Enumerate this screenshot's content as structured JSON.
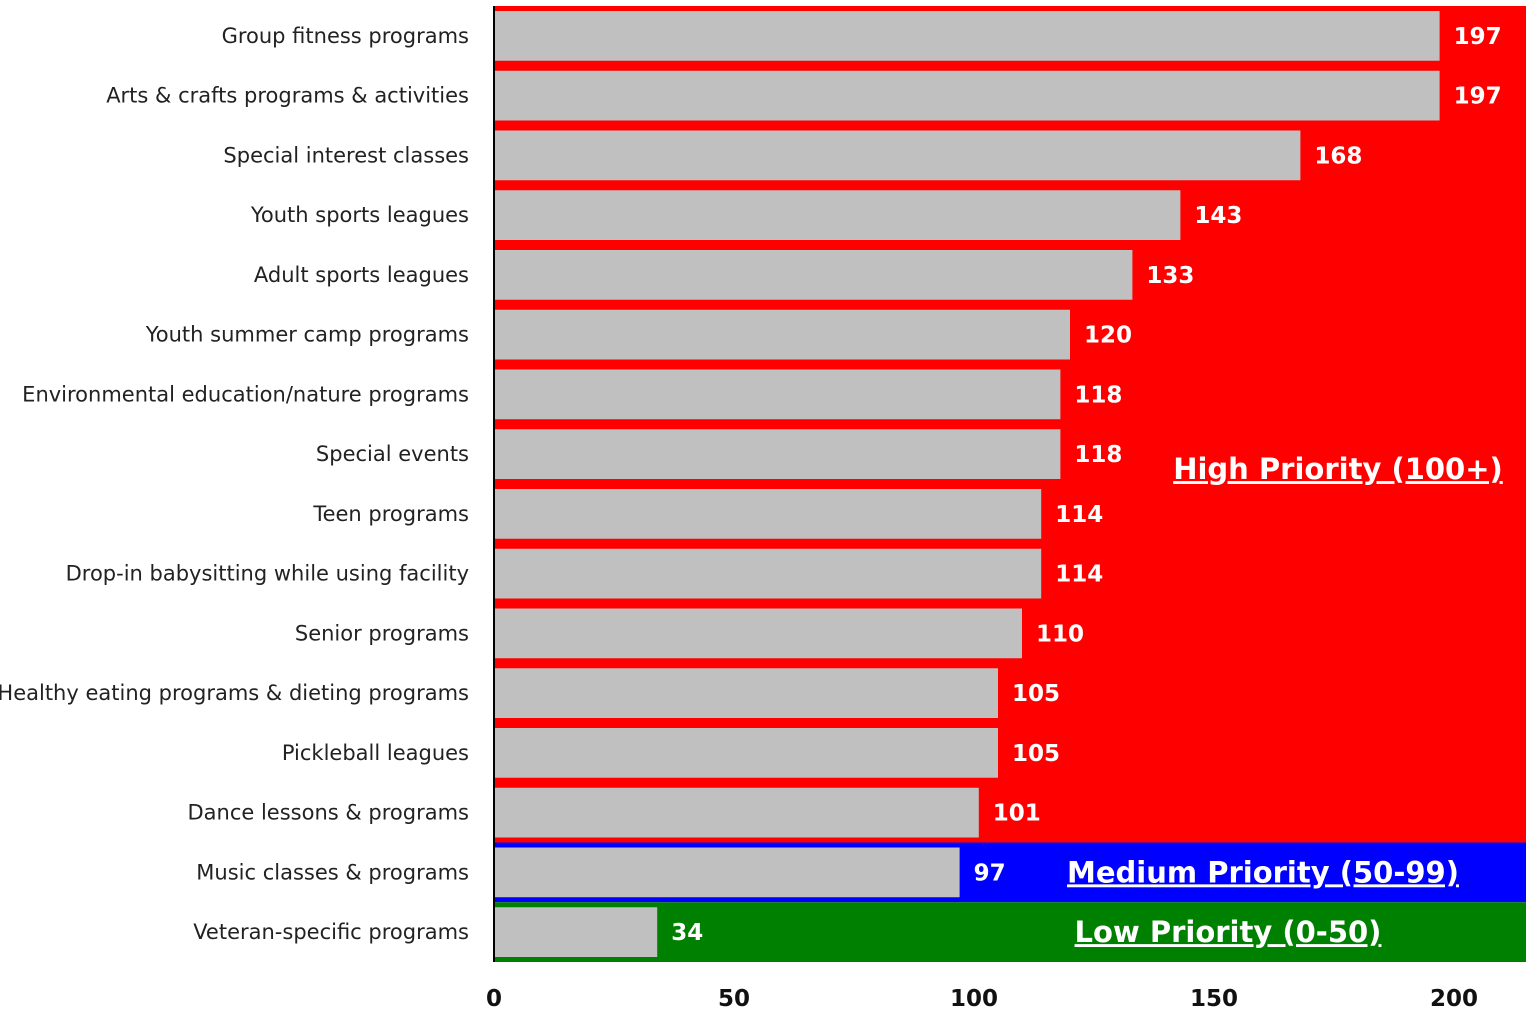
{
  "chart_data": {
    "type": "bar",
    "orientation": "horizontal",
    "categories": [
      "Group fitness programs",
      "Arts & crafts programs & activities",
      "Special interest classes",
      "Youth sports leagues",
      "Adult sports leagues",
      "Youth summer camp programs",
      "Environmental education/nature programs",
      "Special events",
      "Teen programs",
      "Drop-in babysitting while using facility",
      "Senior programs",
      "Healthy eating programs & dieting programs",
      "Pickleball leagues",
      "Dance lessons & programs",
      "Music classes & programs",
      "Veteran-specific programs"
    ],
    "values": [
      197,
      197,
      168,
      143,
      133,
      120,
      118,
      118,
      114,
      114,
      110,
      105,
      105,
      101,
      97,
      34
    ],
    "xlim": [
      0,
      215
    ],
    "xticks": [
      "0",
      "50",
      "100",
      "150",
      "200"
    ],
    "bar_color": "#c0c0c0",
    "value_label_color": "#ffffff",
    "zones": [
      {
        "label": "High Priority (100+)",
        "color": "#ff0000",
        "from_category": 0,
        "to_category": 13
      },
      {
        "label": "Medium Priority (50-99)",
        "color": "#0000ff",
        "from_category": 14,
        "to_category": 14
      },
      {
        "label": "Low Priority (0-50)",
        "color": "#008000",
        "from_category": 15,
        "to_category": 15
      }
    ],
    "grid": false,
    "legend": "none"
  }
}
